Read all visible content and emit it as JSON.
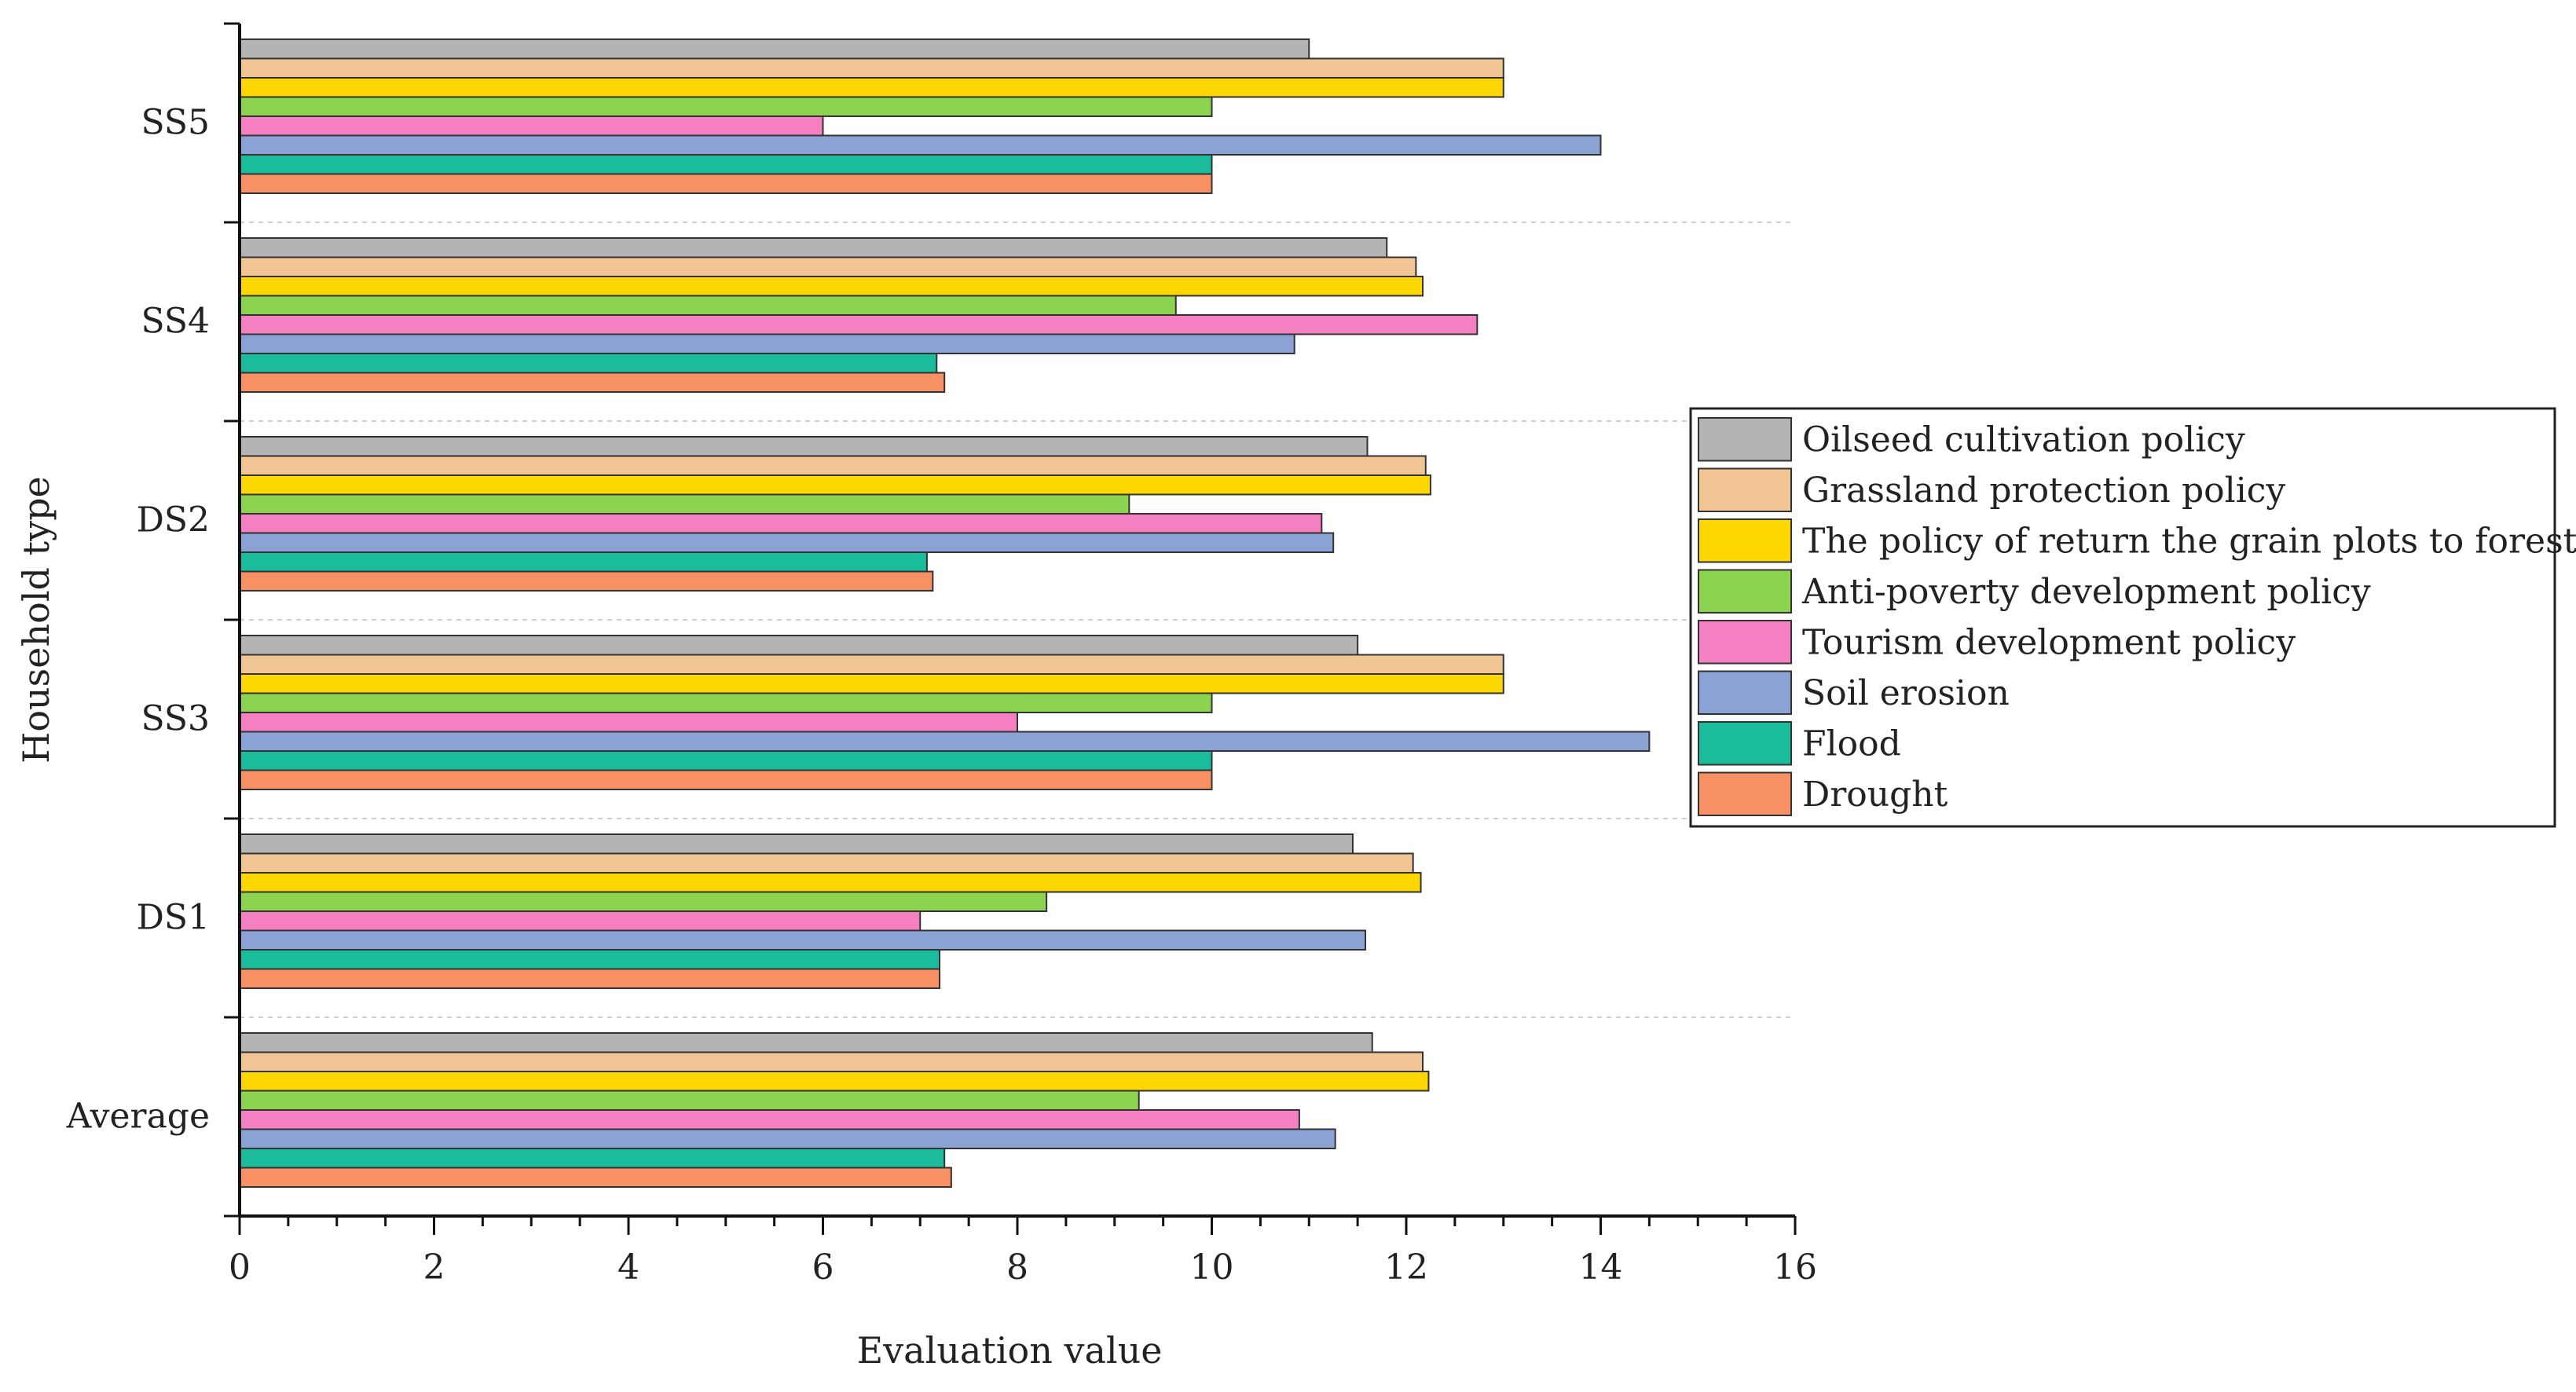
{
  "chart_data": {
    "type": "bar",
    "orientation": "horizontal",
    "title": "",
    "xlabel": "Evaluation value",
    "ylabel": "Household type",
    "xlim": [
      0,
      16
    ],
    "x_ticks": [
      "0",
      "2",
      "4",
      "6",
      "8",
      "10",
      "12",
      "14",
      "16"
    ],
    "categories": [
      "SS5",
      "SS4",
      "DS2",
      "SS3",
      "DS1",
      "Average"
    ],
    "legend_position": "right",
    "series": [
      {
        "name": "Oilseed cultivation policy",
        "color": "#B4B4B4",
        "values": [
          11.0,
          11.8,
          11.6,
          11.5,
          11.45,
          11.65
        ]
      },
      {
        "name": "Grassland protection policy",
        "color": "#F2C594",
        "values": [
          13.0,
          12.1,
          12.2,
          13.0,
          12.07,
          12.17
        ]
      },
      {
        "name": "The policy of return the grain plots to forestry",
        "color": "#FFD700",
        "values": [
          13.0,
          12.17,
          12.25,
          13.0,
          12.15,
          12.23
        ]
      },
      {
        "name": "Anti-poverty development policy",
        "color": "#8CD44F",
        "values": [
          10.0,
          9.63,
          9.15,
          10.0,
          8.3,
          9.25
        ]
      },
      {
        "name": "Tourism development policy",
        "color": "#F47FC1",
        "values": [
          6.0,
          12.73,
          11.13,
          8.0,
          7.0,
          10.9
        ]
      },
      {
        "name": "Soil erosion",
        "color": "#8BA3D4",
        "values": [
          14.0,
          10.85,
          11.25,
          14.5,
          11.58,
          11.27
        ]
      },
      {
        "name": "Flood",
        "color": "#1ABC9C",
        "values": [
          10.0,
          7.17,
          7.07,
          10.0,
          7.2,
          7.25
        ]
      },
      {
        "name": "Drought",
        "color": "#F79163",
        "values": [
          10.0,
          7.25,
          7.13,
          10.0,
          7.2,
          7.32
        ]
      }
    ]
  }
}
